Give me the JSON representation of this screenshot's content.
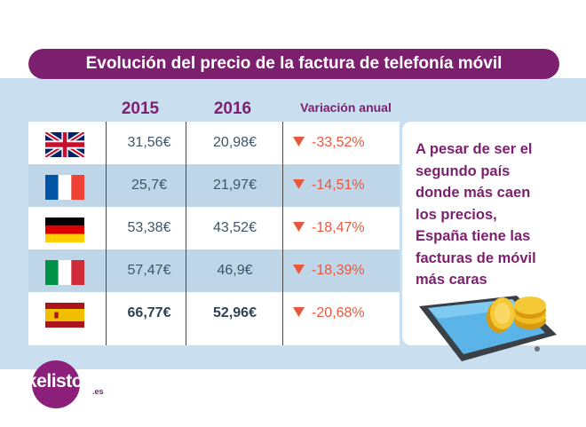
{
  "title": "Evolución del precio de la factura de telefonía móvil",
  "chart_data": {
    "type": "table",
    "columns": [
      "2015",
      "2016",
      "Variación anual"
    ],
    "rows": [
      {
        "country": "Reino Unido",
        "flag": "uk",
        "v2015": "31,56€",
        "v2016": "20,98€",
        "variation": "-33,52%"
      },
      {
        "country": "Francia",
        "flag": "fr",
        "v2015": "25,7€",
        "v2016": "21,97€",
        "variation": "-14,51%"
      },
      {
        "country": "Alemania",
        "flag": "de",
        "v2015": "53,38€",
        "v2016": "43,52€",
        "variation": "-18,47%"
      },
      {
        "country": "Italia",
        "flag": "it",
        "v2015": "57,47€",
        "v2016": "46,9€",
        "variation": "-18,39%"
      },
      {
        "country": "España",
        "flag": "es",
        "v2015": "66,77€",
        "v2016": "52,96€",
        "variation": "-20,68%"
      }
    ],
    "highlight_row": "España"
  },
  "note_lines": [
    "A pesar de ser el",
    "segundo país",
    "donde más caen",
    "los precios,",
    "España tiene las",
    "facturas de móvil",
    "más caras"
  ],
  "logo": {
    "name": "kelisto",
    "suffix": ".es"
  },
  "colors": {
    "brand": "#7d1f6f",
    "band": "#c9dff0",
    "row_alt": "#bfd6e9",
    "negative": "#e8583d"
  }
}
